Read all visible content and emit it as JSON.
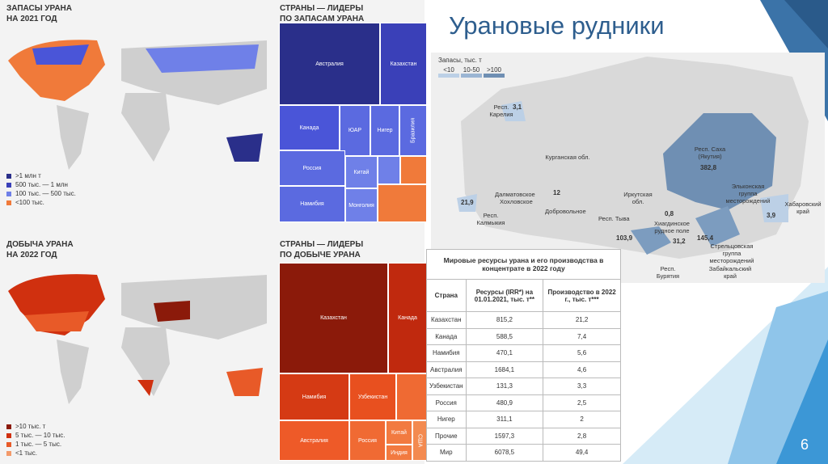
{
  "slide": {
    "title": "Урановые рудники",
    "page_number": "6"
  },
  "reserves_map": {
    "title": [
      "ЗАПАСЫ УРАНА",
      "НА 2021 ГОД"
    ],
    "legend": [
      ">1 млн т",
      "500 тыс. — 1 млн",
      "100 тыс. — 500 тыс.",
      "<100 тыс."
    ]
  },
  "reserves_treemap": {
    "title": [
      "СТРАНЫ — ЛИДЕРЫ",
      "ПО ЗАПАСАМ УРАНА"
    ],
    "labels": [
      "Австралия",
      "Казахстан",
      "Канада",
      "ЮАР",
      "Нигер",
      "Бразилия",
      "Россия",
      "Китай",
      "Намибия",
      "Монголия"
    ]
  },
  "production_map": {
    "title": [
      "ДОБЫЧА УРАНА",
      "НА 2022 ГОД"
    ],
    "legend": [
      ">10 тыс. т",
      "5 тыс. — 10 тыс.",
      "1 тыс. — 5 тыс.",
      "<1 тыс."
    ]
  },
  "production_treemap": {
    "title": [
      "СТРАНЫ — ЛИДЕРЫ",
      "ПО ДОБЫЧЕ УРАНА"
    ],
    "labels": [
      "Казахстан",
      "Канада",
      "Намибия",
      "Узбекистан",
      "Австралия",
      "Россия",
      "Китай",
      "Индия",
      "США"
    ]
  },
  "russia_map": {
    "legend_title": "Запасы, тыс. т",
    "legend": [
      "<10",
      "10-50",
      ">100"
    ],
    "labels": {
      "karelia": "Респ. Карелия",
      "karelia_value": "3,1",
      "kurgan": "Курганская обл.",
      "kurgan_value": "12",
      "dalmatovskoe": "Далматовское",
      "khokhlovskoe": "Хохловское",
      "dobrovolnoe": "Добровольное",
      "kalmykia_value": "21,9",
      "kalmykia": "Респ. Калмыкия",
      "irkutsk": "Иркутская обл.",
      "sakha": "Респ. Саха (Якутия)",
      "sakha_value": "382,8",
      "elkon": "Эльконская группа месторождений",
      "khabarovsk": "Хабаровский край",
      "khabarovsk_value": "3,9",
      "tyva": "Респ. Тыва",
      "irkutsk_value": "103,9",
      "value_08": "0,8",
      "khiagda": "Хиагдинское рудное поле",
      "buryatia_value": "31,2",
      "zabaikal_value": "145,4",
      "streltsovka": "Стрельцовская группа месторождений",
      "zabaikal": "Забайкальский край",
      "buryatia": "Респ. Бурятия"
    }
  },
  "table": {
    "title": "Мировые ресурсы урана и его производства в концентрате в 2022 году",
    "headers": [
      "Страна",
      "Ресурсы (IRR*) на 01.01.2021, тыс. т**",
      "Производство в 2022 г., тыс. т***"
    ],
    "rows": [
      [
        "Казахстан",
        "815,2",
        "21,2"
      ],
      [
        "Канада",
        "588,5",
        "7,4"
      ],
      [
        "Намибия",
        "470,1",
        "5,6"
      ],
      [
        "Австралия",
        "1684,1",
        "4,6"
      ],
      [
        "Узбекистан",
        "131,3",
        "3,3"
      ],
      [
        "Россия",
        "480,9",
        "2,5"
      ],
      [
        "Нигер",
        "311,1",
        "2"
      ],
      [
        "Прочие",
        "1597,3",
        "2,8"
      ],
      [
        "Мир",
        "6078,5",
        "49,4"
      ]
    ]
  }
}
